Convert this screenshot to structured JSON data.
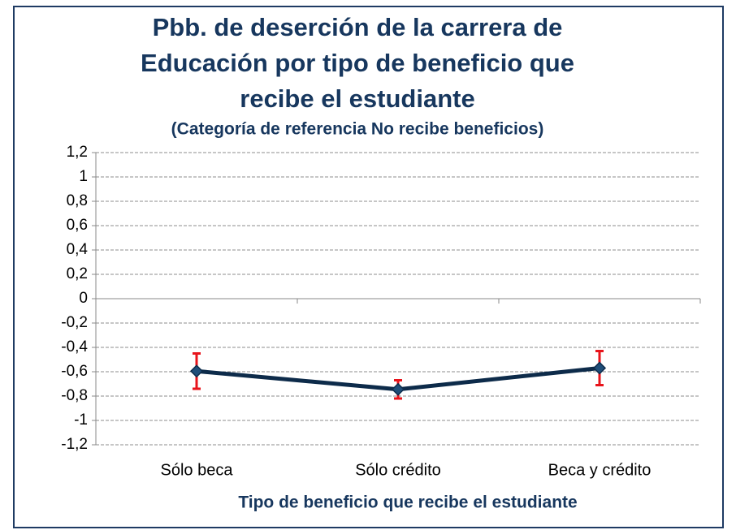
{
  "chart_data": {
    "type": "line",
    "title": [
      "Pbb. de deserción de la carrera de",
      "Educación por tipo de beneficio que",
      "recibe el estudiante"
    ],
    "subtitle": "(Categoría de referencia No recibe beneficios)",
    "x_label": "Tipo de beneficio que recibe el estudiante",
    "categories": [
      "Sólo beca",
      "Sólo crédito",
      "Beca y crédito"
    ],
    "values": [
      -0.595,
      -0.745,
      -0.57
    ],
    "errors": [
      0.145,
      0.075,
      0.14
    ],
    "color": "#0d2b4a",
    "error_color": "#e8141b",
    "ylim": [
      -1.2,
      1.2
    ],
    "yticks": [
      {
        "value": -1.2,
        "label": "-1,2"
      },
      -1,
      {
        "value": -0.8,
        "label": "-0,8"
      },
      {
        "value": -0.6,
        "label": "-0,6"
      },
      {
        "value": -0.4,
        "label": "-0,4"
      },
      {
        "value": -0.2,
        "label": "-0,2"
      },
      0,
      {
        "value": 0.2,
        "label": "0,2"
      },
      {
        "value": 0.4,
        "label": "0,4"
      },
      {
        "value": 0.6,
        "label": "0,6"
      },
      {
        "value": 0.8,
        "label": "0,8"
      },
      1,
      {
        "value": 1.2,
        "label": "1,2"
      }
    ],
    "grid": true
  }
}
